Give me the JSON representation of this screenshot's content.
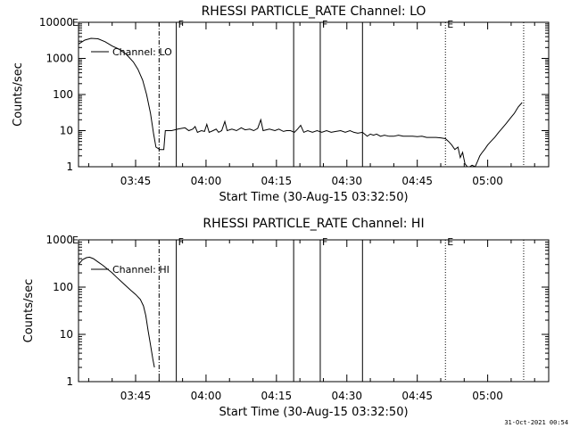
{
  "chart_data": [
    {
      "type": "line",
      "title": "RHESSI PARTICLE_RATE Channel: LO",
      "xlabel": "Start Time (30-Aug-15 03:32:50)",
      "ylabel": "Counts/sec",
      "yscale": "log",
      "ylim": [
        1,
        10000
      ],
      "xlim": [
        "03:32:50",
        "05:13:00"
      ],
      "x_ticks": [
        "03:45",
        "04:00",
        "04:15",
        "04:30",
        "04:45",
        "05:00"
      ],
      "y_ticks": [
        "1",
        "10",
        "100",
        "1000",
        "10000"
      ],
      "legend": {
        "label": "Channel: LO",
        "position": "top-left"
      },
      "grid": false,
      "event_markers": [
        {
          "time": "03:50:00",
          "style": "dashdot",
          "label": ""
        },
        {
          "time": "03:53:40",
          "style": "solid",
          "label": "F"
        },
        {
          "time": "04:18:40",
          "style": "solid",
          "label": ""
        },
        {
          "time": "04:24:20",
          "style": "solid",
          "label": "F"
        },
        {
          "time": "04:33:20",
          "style": "solid",
          "label": ""
        },
        {
          "time": "04:51:00",
          "style": "dotted",
          "label": "E"
        },
        {
          "time": "05:07:40",
          "style": "dotted",
          "label": ""
        }
      ],
      "corner_label": "E",
      "series": [
        {
          "points": [
            [
              "03:32:50",
              2500
            ],
            [
              "03:34:10",
              3200
            ],
            [
              "03:35:30",
              3600
            ],
            [
              "03:37:00",
              3500
            ],
            [
              "03:38:30",
              2900
            ],
            [
              "03:40:00",
              2200
            ],
            [
              "03:41:30",
              1800
            ],
            [
              "03:43:00",
              1300
            ],
            [
              "03:44:30",
              800
            ],
            [
              "03:45:30",
              500
            ],
            [
              "03:46:30",
              250
            ],
            [
              "03:47:20",
              100
            ],
            [
              "03:48:10",
              30
            ],
            [
              "03:48:50",
              8
            ],
            [
              "03:49:20",
              3.5
            ],
            [
              "03:50:10",
              3
            ],
            [
              "03:51:00",
              3
            ],
            [
              "03:51:20",
              10
            ],
            [
              "03:52:40",
              10
            ],
            [
              "03:54:00",
              11
            ],
            [
              "03:55:30",
              12
            ],
            [
              "03:56:20",
              10
            ],
            [
              "03:57:10",
              11
            ],
            [
              "03:57:40",
              13
            ],
            [
              "03:58:10",
              9
            ],
            [
              "03:59:00",
              10
            ],
            [
              "03:59:40",
              9.5
            ],
            [
              "04:00:10",
              15
            ],
            [
              "04:00:40",
              9
            ],
            [
              "04:01:30",
              10
            ],
            [
              "04:02:10",
              11
            ],
            [
              "04:02:40",
              9
            ],
            [
              "04:03:20",
              10
            ],
            [
              "04:04:00",
              18
            ],
            [
              "04:04:30",
              10
            ],
            [
              "04:05:30",
              11
            ],
            [
              "04:06:30",
              10
            ],
            [
              "04:07:30",
              12
            ],
            [
              "04:08:20",
              10.5
            ],
            [
              "04:09:20",
              11
            ],
            [
              "04:10:10",
              10
            ],
            [
              "04:11:00",
              11.5
            ],
            [
              "04:11:40",
              20
            ],
            [
              "04:12:10",
              10
            ],
            [
              "04:13:30",
              11
            ],
            [
              "04:14:40",
              10
            ],
            [
              "04:15:30",
              11
            ],
            [
              "04:16:30",
              9.5
            ],
            [
              "04:17:10",
              10
            ],
            [
              "04:18:00",
              10
            ],
            [
              "04:18:50",
              9
            ],
            [
              "04:19:30",
              11
            ],
            [
              "04:20:10",
              14
            ],
            [
              "04:20:50",
              9
            ],
            [
              "04:21:40",
              10
            ],
            [
              "04:22:40",
              9
            ],
            [
              "04:23:40",
              10
            ],
            [
              "04:24:40",
              9
            ],
            [
              "04:25:40",
              10
            ],
            [
              "04:26:40",
              9
            ],
            [
              "04:27:40",
              9.5
            ],
            [
              "04:28:40",
              10
            ],
            [
              "04:29:40",
              9
            ],
            [
              "04:30:40",
              10
            ],
            [
              "04:31:30",
              9
            ],
            [
              "04:32:20",
              8.5
            ],
            [
              "04:33:20",
              9
            ],
            [
              "04:34:20",
              7
            ],
            [
              "04:35:00",
              8
            ],
            [
              "04:35:40",
              7.5
            ],
            [
              "04:36:20",
              8
            ],
            [
              "04:37:10",
              7
            ],
            [
              "04:38:00",
              7.5
            ],
            [
              "04:39:00",
              7
            ],
            [
              "04:40:00",
              7
            ],
            [
              "04:41:00",
              7.5
            ],
            [
              "04:42:00",
              7
            ],
            [
              "04:43:00",
              7
            ],
            [
              "04:44:00",
              7
            ],
            [
              "04:45:00",
              6.8
            ],
            [
              "04:46:00",
              7
            ],
            [
              "04:47:00",
              6.5
            ],
            [
              "04:48:00",
              6.5
            ],
            [
              "04:49:00",
              6.5
            ],
            [
              "04:50:00",
              6.3
            ],
            [
              "04:51:00",
              6
            ],
            [
              "04:51:40",
              5
            ],
            [
              "04:52:20",
              4
            ],
            [
              "04:53:00",
              3
            ],
            [
              "04:53:40",
              3.5
            ],
            [
              "04:54:10",
              1.8
            ],
            [
              "04:54:40",
              2.5
            ],
            [
              "04:55:10",
              1.2
            ],
            [
              "04:55:40",
              1
            ],
            [
              "04:56:10",
              1
            ],
            [
              "04:56:40",
              1.1
            ],
            [
              "04:57:20",
              1
            ],
            [
              "04:57:50",
              1.4
            ],
            [
              "04:58:20",
              2
            ],
            [
              "04:58:50",
              2.5
            ],
            [
              "04:59:20",
              3
            ],
            [
              "05:00:00",
              4
            ],
            [
              "05:00:40",
              5
            ],
            [
              "05:01:30",
              6.5
            ],
            [
              "05:02:20",
              9
            ],
            [
              "05:03:10",
              12
            ],
            [
              "05:04:00",
              16
            ],
            [
              "05:04:50",
              22
            ],
            [
              "05:05:40",
              30
            ],
            [
              "05:06:30",
              45
            ],
            [
              "05:07:20",
              60
            ]
          ]
        }
      ]
    },
    {
      "type": "line",
      "title": "RHESSI PARTICLE_RATE Channel: HI",
      "xlabel": "Start Time (30-Aug-15 03:32:50)",
      "ylabel": "Counts/sec",
      "yscale": "log",
      "ylim": [
        1,
        1000
      ],
      "xlim": [
        "03:32:50",
        "05:13:00"
      ],
      "x_ticks": [
        "03:45",
        "04:00",
        "04:15",
        "04:30",
        "04:45",
        "05:00"
      ],
      "y_ticks": [
        "1",
        "10",
        "100",
        "1000"
      ],
      "legend": {
        "label": "Channel: HI",
        "position": "top-left"
      },
      "grid": false,
      "event_markers": [
        {
          "time": "03:50:00",
          "style": "dashdot",
          "label": ""
        },
        {
          "time": "03:53:40",
          "style": "solid",
          "label": "F"
        },
        {
          "time": "04:18:40",
          "style": "solid",
          "label": ""
        },
        {
          "time": "04:24:20",
          "style": "solid",
          "label": "F"
        },
        {
          "time": "04:33:20",
          "style": "solid",
          "label": ""
        },
        {
          "time": "04:51:00",
          "style": "dotted",
          "label": "E"
        },
        {
          "time": "05:07:40",
          "style": "dotted",
          "label": ""
        }
      ],
      "corner_label": "E",
      "series": [
        {
          "points": [
            [
              "03:32:50",
              300
            ],
            [
              "03:33:40",
              380
            ],
            [
              "03:34:30",
              420
            ],
            [
              "03:35:10",
              430
            ],
            [
              "03:36:00",
              400
            ],
            [
              "03:37:00",
              340
            ],
            [
              "03:38:00",
              290
            ],
            [
              "03:39:00",
              240
            ],
            [
              "03:40:00",
              200
            ],
            [
              "03:41:00",
              160
            ],
            [
              "03:42:00",
              130
            ],
            [
              "03:43:00",
              105
            ],
            [
              "03:44:00",
              85
            ],
            [
              "03:45:00",
              70
            ],
            [
              "03:46:00",
              55
            ],
            [
              "03:46:40",
              40
            ],
            [
              "03:47:10",
              25
            ],
            [
              "03:47:40",
              12
            ],
            [
              "03:48:10",
              6
            ],
            [
              "03:48:40",
              3
            ],
            [
              "03:49:00",
              2
            ]
          ]
        }
      ]
    }
  ],
  "footer": {
    "timestamp": "31-Oct-2021 00:54"
  }
}
